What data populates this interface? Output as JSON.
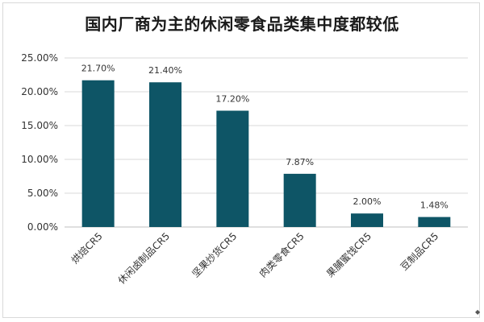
{
  "chart_data": {
    "type": "bar",
    "title": "国内厂商为主的休闲零食品类集中度都较低",
    "categories": [
      "烘焙CR5",
      "休闲卤制品CR5",
      "坚果炒货CR5",
      "肉类零食CR5",
      "果脯蜜饯CR5",
      "豆制品CR5"
    ],
    "values": [
      21.7,
      21.4,
      17.2,
      7.87,
      2.0,
      1.48
    ],
    "data_labels": [
      "21.70%",
      "21.40%",
      "17.20%",
      "7.87%",
      "2.00%",
      "1.48%"
    ],
    "yticks": [
      0,
      5,
      10,
      15,
      20,
      25
    ],
    "ytick_labels": [
      "0.00%",
      "5.00%",
      "10.00%",
      "15.00%",
      "20.00%",
      "25.00%"
    ],
    "ylim": [
      0,
      25
    ],
    "xlabel": "",
    "ylabel": "",
    "grid": true,
    "bar_color": "#0e5566",
    "grid_color": "#d9d9d9"
  }
}
